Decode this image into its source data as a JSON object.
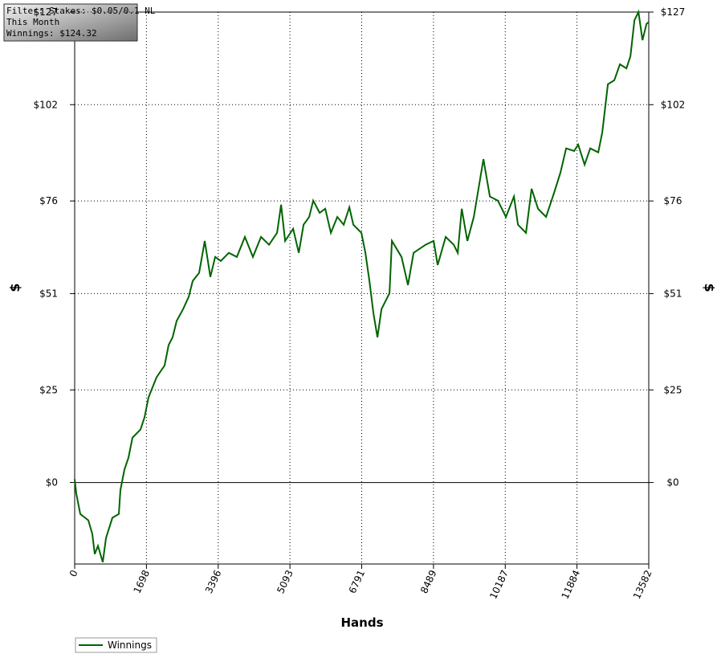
{
  "chart_data": {
    "type": "line",
    "annotations": [
      "Filter: Stakes: $0.05/0.1 NL",
      "This Month",
      "Winnings: $124.32"
    ],
    "xlabel": "Hands",
    "ylabel": "$",
    "xlim": [
      0,
      13582
    ],
    "xticks": [
      0,
      1698,
      3396,
      5093,
      6791,
      8489,
      10187,
      11884,
      13582
    ],
    "ylim": [
      -22,
      127
    ],
    "yticks": [
      {
        "value": 0,
        "label": "$0"
      },
      {
        "value": 25,
        "label": "$25"
      },
      {
        "value": 51,
        "label": "$51"
      },
      {
        "value": 76,
        "label": "$76"
      },
      {
        "value": 102,
        "label": "$102"
      },
      {
        "value": 127,
        "label": "$127"
      }
    ],
    "grid": true,
    "legend": "bottom-left",
    "series": [
      {
        "name": "Winnings",
        "color": "#006400",
        "x": [
          0,
          38,
          133,
          323,
          418,
          475,
          551,
          665,
          741,
          893,
          1045,
          1083,
          1178,
          1273,
          1368,
          1558,
          1653,
          1748,
          1938,
          2128,
          2223,
          2318,
          2413,
          2565,
          2698,
          2793,
          2945,
          3078,
          3211,
          3325,
          3458,
          3648,
          3838,
          4028,
          4218,
          4408,
          4598,
          4788,
          4883,
          4978,
          5168,
          5301,
          5415,
          5548,
          5643,
          5795,
          5928,
          6061,
          6213,
          6365,
          6498,
          6593,
          6783,
          6878,
          6973,
          7068,
          7163,
          7258,
          7448,
          7505,
          7733,
          7885,
          8018,
          8303,
          8493,
          8588,
          8778,
          8968,
          9063,
          9158,
          9291,
          9443,
          9538,
          9671,
          9823,
          10013,
          10203,
          10393,
          10488,
          10678,
          10811,
          10963,
          11153,
          11343,
          11495,
          11628,
          11818,
          11913,
          12065,
          12198,
          12388,
          12483,
          12616,
          12768,
          12901,
          13053,
          13148,
          13243,
          13338,
          13433,
          13528,
          13582
        ],
        "values": [
          0.9,
          -3.0,
          -8.5,
          -10.2,
          -13.9,
          -19.3,
          -17.1,
          -21.5,
          -15.0,
          -9.5,
          -8.5,
          -2.0,
          3.5,
          6.7,
          12.1,
          14.3,
          17.6,
          23.0,
          28.4,
          31.6,
          37.1,
          39.2,
          43.6,
          46.8,
          50.1,
          54.4,
          56.6,
          65.2,
          55.5,
          60.9,
          59.8,
          62.0,
          60.9,
          66.3,
          60.9,
          66.3,
          64.2,
          67.4,
          75.0,
          65.2,
          68.5,
          62.0,
          69.6,
          71.7,
          76.1,
          72.8,
          73.9,
          67.4,
          71.7,
          69.6,
          74.3,
          69.6,
          67.4,
          62.0,
          54.4,
          45.7,
          39.2,
          46.8,
          51.1,
          65.2,
          60.9,
          53.3,
          62.0,
          64.2,
          65.2,
          58.7,
          66.3,
          64.2,
          62.0,
          73.9,
          65.2,
          71.7,
          78.2,
          87.3,
          77.2,
          76.1,
          71.7,
          77.2,
          69.6,
          67.4,
          79.3,
          73.9,
          71.7,
          78.2,
          83.7,
          90.2,
          89.5,
          91.2,
          85.8,
          90.2,
          89.1,
          94.5,
          107.5,
          108.6,
          112.9,
          111.8,
          115.1,
          124.8,
          127.0,
          119.4,
          123.8,
          124.3
        ]
      }
    ]
  }
}
